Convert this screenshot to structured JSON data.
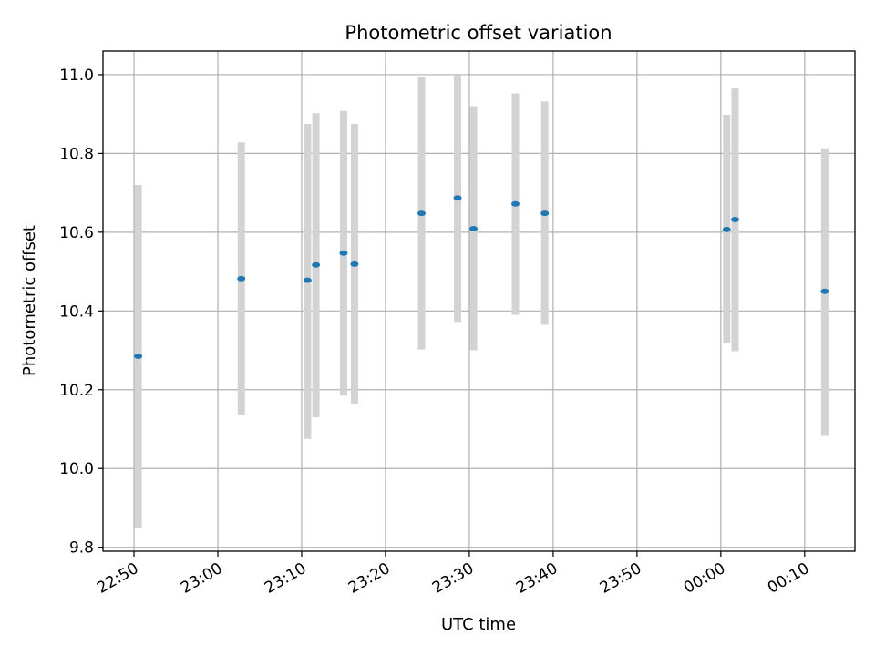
{
  "chart_data": {
    "type": "scatter",
    "title": "Photometric offset variation",
    "xlabel": "UTC time",
    "ylabel": "Photometric offset",
    "x_ticks": [
      {
        "label": "22:50",
        "minutes": 0
      },
      {
        "label": "23:00",
        "minutes": 10
      },
      {
        "label": "23:10",
        "minutes": 20
      },
      {
        "label": "23:20",
        "minutes": 30
      },
      {
        "label": "23:30",
        "minutes": 40
      },
      {
        "label": "23:40",
        "minutes": 50
      },
      {
        "label": "23:50",
        "minutes": 60
      },
      {
        "label": "00:00",
        "minutes": 70
      },
      {
        "label": "00:10",
        "minutes": 80
      }
    ],
    "xlim_minutes": [
      -3.7,
      86.0
    ],
    "y_ticks": [
      9.8,
      10.0,
      10.2,
      10.4,
      10.6,
      10.8,
      11.0
    ],
    "ylim": [
      9.79,
      11.06
    ],
    "grid": true,
    "point_color": "#1f77b4",
    "errorbar_color": "#d3d3d3",
    "points": [
      {
        "minutes": 0.5,
        "y": 10.285,
        "ylow": 9.85,
        "yhigh": 10.72
      },
      {
        "minutes": 12.8,
        "y": 10.482,
        "ylow": 10.135,
        "yhigh": 10.828
      },
      {
        "minutes": 20.7,
        "y": 10.478,
        "ylow": 10.075,
        "yhigh": 10.875
      },
      {
        "minutes": 21.7,
        "y": 10.517,
        "ylow": 10.13,
        "yhigh": 10.902
      },
      {
        "minutes": 25.0,
        "y": 10.547,
        "ylow": 10.185,
        "yhigh": 10.908
      },
      {
        "minutes": 26.3,
        "y": 10.519,
        "ylow": 10.165,
        "yhigh": 10.875
      },
      {
        "minutes": 34.3,
        "y": 10.648,
        "ylow": 10.302,
        "yhigh": 10.995
      },
      {
        "minutes": 38.6,
        "y": 10.687,
        "ylow": 10.372,
        "yhigh": 10.998
      },
      {
        "minutes": 40.5,
        "y": 10.609,
        "ylow": 10.3,
        "yhigh": 10.92
      },
      {
        "minutes": 45.5,
        "y": 10.672,
        "ylow": 10.39,
        "yhigh": 10.952
      },
      {
        "minutes": 49.0,
        "y": 10.648,
        "ylow": 10.365,
        "yhigh": 10.932
      },
      {
        "minutes": 70.7,
        "y": 10.607,
        "ylow": 10.318,
        "yhigh": 10.898
      },
      {
        "minutes": 71.7,
        "y": 10.632,
        "ylow": 10.298,
        "yhigh": 10.965
      },
      {
        "minutes": 82.4,
        "y": 10.45,
        "ylow": 10.085,
        "yhigh": 10.813
      }
    ]
  }
}
